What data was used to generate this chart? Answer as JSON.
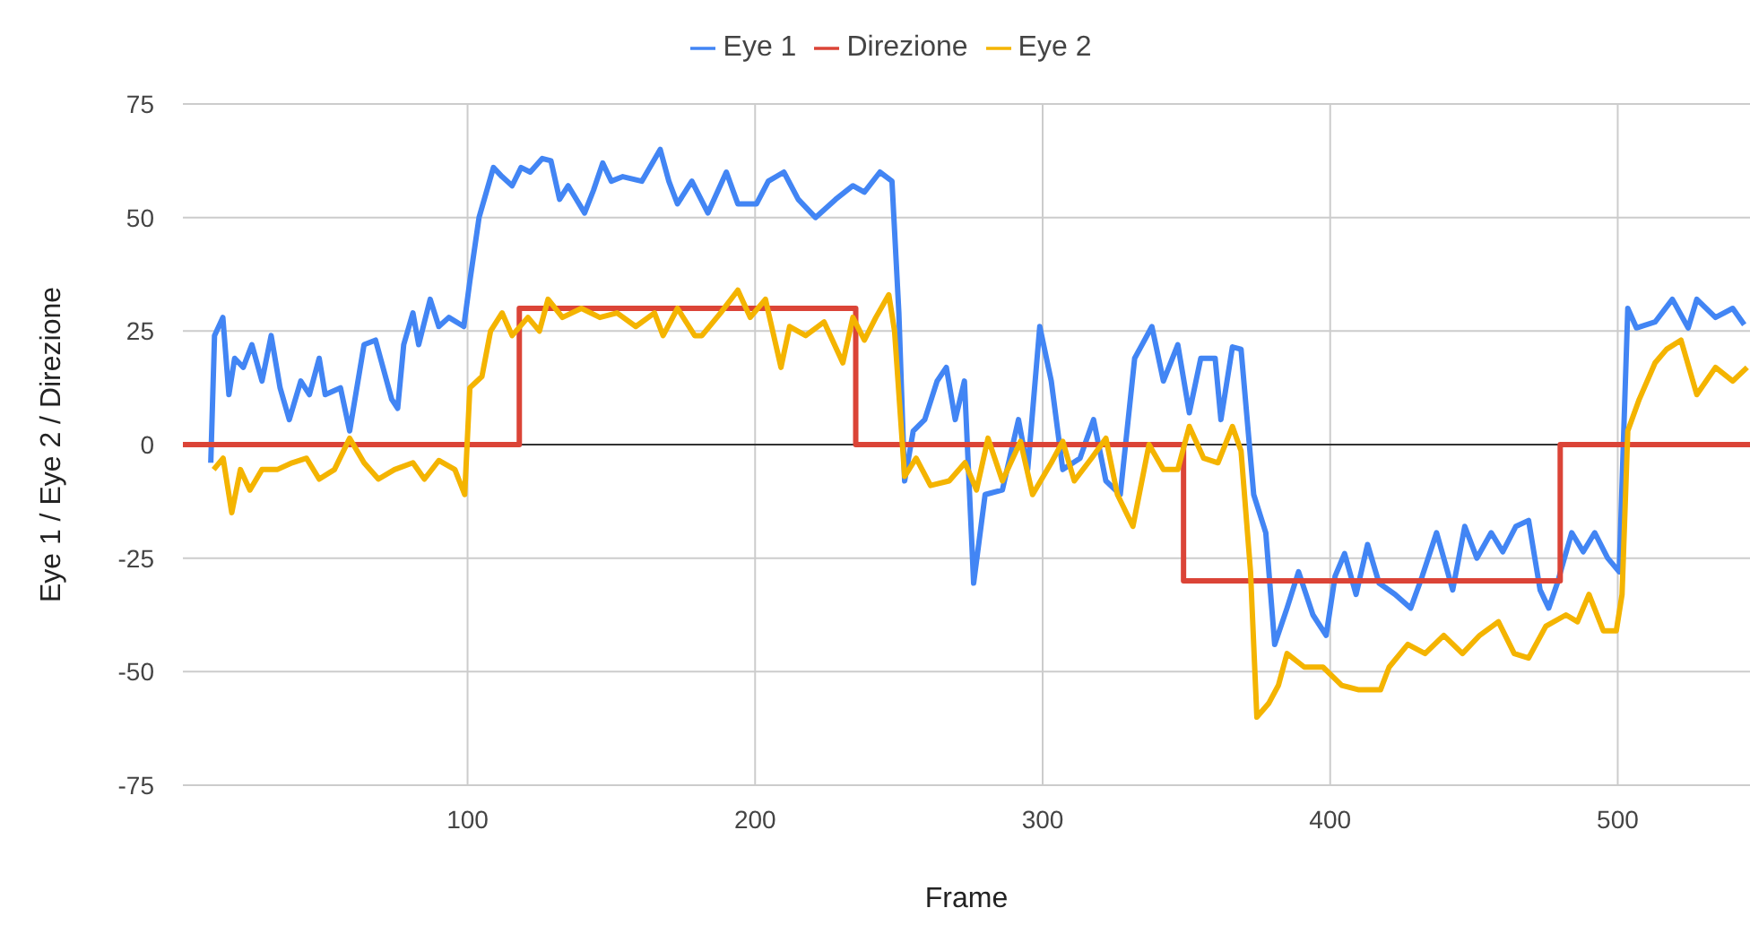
{
  "chart_data": {
    "type": "line",
    "xlabel": "Frame",
    "ylabel": "Eye 1 / Eye 2 / Direzione",
    "xlim": [
      1,
      546
    ],
    "xticks": [
      100,
      200,
      300,
      400,
      500
    ],
    "ylim": [
      -75,
      75
    ],
    "yticks": [
      -75,
      -50,
      -25,
      0,
      25,
      50,
      75
    ],
    "grid": true,
    "legend": "top",
    "marker": "none",
    "line_style": "solid",
    "ref_lines": [
      {
        "axis": "y",
        "value": 0,
        "color": "#333333"
      }
    ],
    "series": [
      {
        "name": "Eye 1",
        "color": "#4285f4",
        "x": [
          10.7,
          12,
          14.9,
          17,
          19,
          22,
          25,
          28.5,
          31.7,
          34.8,
          38,
          42,
          45,
          48.4,
          50.5,
          55.8,
          59,
          64,
          68,
          73.6,
          75.7,
          77.8,
          81,
          83,
          87,
          90,
          93.5,
          98.7,
          100.8,
          104,
          109,
          112,
          115.5,
          118.6,
          121.8,
          126,
          129,
          132,
          135,
          140.7,
          143.8,
          147,
          150,
          154,
          160.6,
          167,
          170,
          173,
          178,
          183.6,
          190,
          194,
          200.5,
          204.6,
          210,
          215,
          221,
          228,
          234,
          238,
          243.4,
          247.6,
          250,
          252,
          255,
          259,
          263.3,
          266.5,
          269.6,
          272.8,
          276,
          280,
          286,
          291.6,
          294.8,
          299,
          303,
          307,
          313,
          317.7,
          322,
          327,
          332,
          338,
          342,
          347,
          351,
          355,
          360,
          362,
          366,
          369,
          373.4,
          377.6,
          380.7,
          385,
          389,
          394,
          398.6,
          401.7,
          405,
          409,
          413,
          417,
          422.6,
          428,
          432,
          437,
          442.6,
          446.8,
          451,
          456,
          460,
          464.6,
          469,
          473,
          476,
          479,
          484,
          488,
          492,
          496.5,
          500.5,
          503.5,
          506.5,
          513,
          519,
          524.5,
          527.5,
          534,
          540,
          544
        ],
        "values": [
          -4,
          24,
          28,
          11,
          19,
          17,
          22,
          14,
          24,
          12.5,
          5.5,
          14,
          11,
          19,
          11,
          12.5,
          3,
          22,
          23,
          10,
          8,
          22,
          29,
          22,
          32,
          26,
          28,
          26,
          36,
          50,
          61,
          59,
          57,
          61,
          60,
          63,
          62.5,
          54,
          57,
          51,
          56,
          62,
          58,
          59,
          58,
          65,
          58,
          53,
          58,
          51,
          60,
          53,
          53,
          58,
          60,
          54,
          50,
          54,
          57,
          55.6,
          60,
          58,
          29,
          -8,
          3,
          5.5,
          14,
          17,
          5.5,
          14,
          -30.5,
          -11,
          -10,
          5.5,
          -5.5,
          26,
          14,
          -5.5,
          -3,
          5.5,
          -8,
          -11,
          19,
          26,
          14,
          22,
          7,
          19,
          19,
          5.5,
          21.5,
          21,
          -11,
          -19.4,
          -44,
          -36,
          -28,
          -37.5,
          -42,
          -29,
          -24,
          -33,
          -22,
          -30.5,
          -33,
          -36,
          -29,
          -19.4,
          -32,
          -18,
          -25,
          -19.4,
          -23.6,
          -18,
          -16.7,
          -32,
          -36,
          -30.5,
          -19.4,
          -23.6,
          -19.4,
          -25,
          -28,
          30,
          25.7,
          27,
          32,
          25.7,
          32,
          28,
          30,
          26.4
        ]
      },
      {
        "name": "Direzione",
        "color": "#db4437",
        "type": "step",
        "x": [
          1,
          118,
          235,
          349,
          480,
          546
        ],
        "values": [
          0,
          30,
          0,
          -30,
          0,
          0
        ]
      },
      {
        "name": "Eye 2",
        "color": "#f4b400",
        "x": [
          11.7,
          15,
          18,
          21,
          24.3,
          28.5,
          33.8,
          39,
          44,
          48.4,
          53.7,
          59,
          64,
          69,
          74.6,
          81,
          85,
          90,
          95.6,
          99,
          100.8,
          105,
          108,
          112,
          115.5,
          121,
          125,
          128,
          133,
          139.6,
          146,
          152,
          158.5,
          165,
          168,
          173,
          179,
          181.5,
          188,
          194,
          198.3,
          203.6,
          209,
          212,
          217.6,
          224,
          230.5,
          234,
          238,
          242,
          246.5,
          248.5,
          252,
          256,
          261,
          267.5,
          273,
          277,
          281,
          286,
          292.3,
          296.5,
          303,
          307,
          311,
          317,
          322,
          326,
          331.4,
          337,
          342,
          347,
          351,
          356,
          361,
          366,
          369,
          372.3,
          374.5,
          378.6,
          382,
          385,
          391,
          397.5,
          404,
          410,
          417.5,
          420.5,
          427,
          433,
          439.5,
          446,
          452,
          458.5,
          464,
          469,
          475,
          482,
          486,
          490,
          495,
          499.5,
          501.5,
          503.5,
          507.5,
          513,
          517,
          522,
          527.5,
          534,
          540,
          545
        ],
        "values": [
          -5.5,
          -3,
          -15,
          -5.5,
          -10,
          -5.5,
          -5.5,
          -4,
          -3,
          -7.6,
          -5.5,
          1.4,
          -4,
          -7.6,
          -5.5,
          -4,
          -7.6,
          -3.5,
          -5.5,
          -11,
          12.5,
          15,
          25,
          29,
          24,
          28,
          25,
          32,
          28,
          30,
          28,
          29,
          26,
          29,
          24,
          30,
          24,
          24,
          29,
          34,
          28,
          32,
          17,
          26,
          24,
          27,
          18,
          28,
          23,
          28,
          33,
          25,
          -7,
          -3,
          -9,
          -8,
          -4,
          -10,
          1.4,
          -8,
          0.7,
          -11,
          -4,
          0.7,
          -8,
          -3,
          1.4,
          -11,
          -18,
          0,
          -5.5,
          -5.5,
          4,
          -3,
          -4,
          4,
          -1.4,
          -28,
          -60,
          -57,
          -53,
          -46,
          -49,
          -49,
          -53,
          -54,
          -54,
          -49,
          -44,
          -46,
          -42,
          -46,
          -42,
          -39,
          -46,
          -47,
          -40,
          -37.5,
          -39,
          -33,
          -41,
          -41,
          -33,
          3,
          10,
          18,
          21,
          23,
          11,
          17,
          14,
          17
        ]
      }
    ]
  }
}
